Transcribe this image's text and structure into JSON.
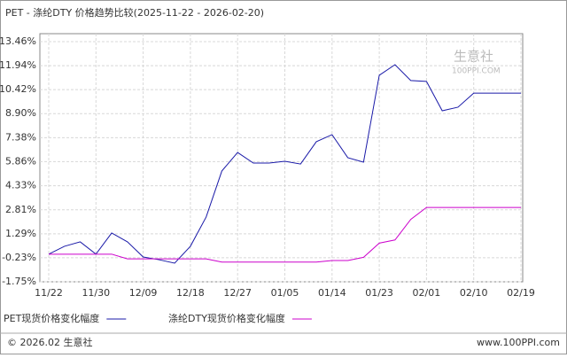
{
  "chart_data": {
    "type": "line",
    "title": "PET - 涤纶DTY 价格趋势比较(2025-11-22 - 2026-02-20)",
    "categories": [
      "11/22",
      null,
      null,
      "11/30",
      null,
      null,
      "12/09",
      null,
      null,
      "12/18",
      null,
      null,
      "12/27",
      null,
      null,
      "01/05",
      null,
      null,
      "01/14",
      null,
      null,
      "01/23",
      null,
      null,
      "02/01",
      null,
      null,
      "02/10",
      null,
      null,
      "02/19"
    ],
    "series": [
      {
        "name": "PET现货价格变化幅度",
        "color": "#1a1aa8",
        "values": [
          0,
          0.5,
          0.78,
          0,
          1.34,
          0.78,
          -0.18,
          -0.35,
          -0.57,
          0.5,
          2.35,
          5.27,
          6.44,
          5.77,
          5.77,
          5.88,
          5.71,
          7.12,
          7.57,
          6.11,
          5.83,
          11.33,
          12.0,
          11.0,
          10.94,
          9.08,
          9.31,
          10.2,
          10.2,
          10.2,
          10.2
        ]
      },
      {
        "name": "涤纶DTY现货价格变化幅度",
        "color": "#cc00cc",
        "values": [
          0,
          0,
          0,
          0,
          0,
          -0.3,
          -0.3,
          -0.3,
          -0.3,
          -0.3,
          -0.3,
          -0.5,
          -0.5,
          -0.5,
          -0.5,
          -0.5,
          -0.5,
          -0.5,
          -0.4,
          -0.4,
          -0.2,
          0.7,
          0.9,
          2.2,
          2.96,
          2.96,
          2.96,
          2.96,
          2.96,
          2.96,
          2.96
        ]
      }
    ],
    "ylim": [
      -1.75,
      13.46
    ],
    "yticks": [
      {
        "value": -1.75,
        "label": "-1.75%"
      },
      {
        "value": -0.23,
        "label": "-0.23%"
      },
      {
        "value": 1.29,
        "label": "1.29%"
      },
      {
        "value": 2.81,
        "label": "2.81%"
      },
      {
        "value": 4.33,
        "label": "4.33%"
      },
      {
        "value": 5.86,
        "label": "5.86%"
      },
      {
        "value": 7.38,
        "label": "7.38%"
      },
      {
        "value": 8.9,
        "label": "8.90%"
      },
      {
        "value": 10.42,
        "label": "10.42%"
      },
      {
        "value": 11.94,
        "label": "11.94%"
      },
      {
        "value": 13.46,
        "label": "13.46%"
      }
    ],
    "grid": true,
    "watermark": "生意社",
    "watermark_sub": "100PPI.COM",
    "footer_left": "© 2026.02 生意社",
    "footer_right": "www.100PPI.com"
  }
}
